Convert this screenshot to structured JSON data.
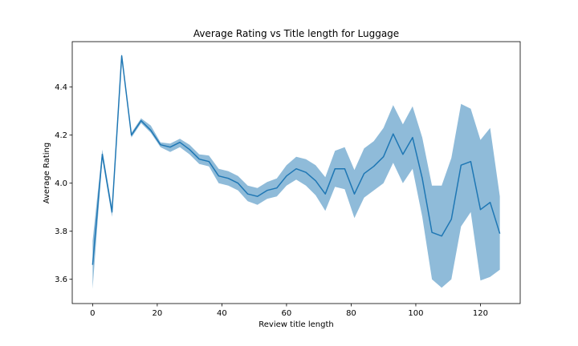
{
  "chart_data": {
    "type": "line",
    "title": "Average Rating vs Title length for Luggage",
    "xlabel": "Review title length",
    "ylabel": "Average Rating",
    "xlim": [
      -6.3,
      132.3
    ],
    "ylim": [
      3.499,
      4.589
    ],
    "xticks": [
      0,
      20,
      40,
      60,
      80,
      100,
      120
    ],
    "yticks": [
      3.6,
      3.8,
      4.0,
      4.2,
      4.4
    ],
    "tick_labels_x": [
      "0",
      "20",
      "40",
      "60",
      "80",
      "100",
      "120"
    ],
    "tick_labels_y": [
      "3.6",
      "3.8",
      "4.0",
      "4.2",
      "4.4"
    ],
    "grid": false,
    "colors": {
      "line": "#1f77b4",
      "band": "#1f77b4",
      "band_opacity": 0.5
    },
    "series": [
      {
        "x": [
          0,
          3,
          6,
          9,
          12,
          15,
          18,
          21,
          24,
          27,
          30,
          33,
          36,
          39,
          42,
          45,
          48,
          51,
          54,
          57,
          60,
          63,
          66,
          69,
          72,
          75,
          78,
          81,
          84,
          87,
          90,
          93,
          96,
          99,
          102,
          105,
          108,
          111,
          114,
          117,
          120,
          123,
          126
        ],
        "y": [
          3.66,
          4.12,
          3.88,
          4.53,
          4.2,
          4.26,
          4.22,
          4.16,
          4.15,
          4.17,
          4.14,
          4.1,
          4.09,
          4.03,
          4.02,
          4.0,
          3.955,
          3.945,
          3.97,
          3.98,
          4.03,
          4.06,
          4.045,
          4.01,
          3.955,
          4.06,
          4.06,
          3.955,
          4.04,
          4.07,
          4.11,
          4.205,
          4.12,
          4.19,
          4.02,
          3.795,
          3.78,
          3.85,
          4.075,
          4.09,
          3.89,
          3.92,
          3.79
        ],
        "ci_lower": [
          3.56,
          4.1,
          3.86,
          4.52,
          4.19,
          4.25,
          4.21,
          4.15,
          4.13,
          4.15,
          4.12,
          4.08,
          4.07,
          4.0,
          3.99,
          3.97,
          3.925,
          3.91,
          3.935,
          3.945,
          3.99,
          4.015,
          3.99,
          3.95,
          3.885,
          3.985,
          3.975,
          3.855,
          3.94,
          3.97,
          4.0,
          4.085,
          4.0,
          4.06,
          3.86,
          3.6,
          3.565,
          3.6,
          3.82,
          3.88,
          3.595,
          3.61,
          3.64
        ],
        "ci_upper": [
          3.76,
          4.14,
          3.9,
          4.54,
          4.21,
          4.27,
          4.24,
          4.17,
          4.165,
          4.185,
          4.16,
          4.12,
          4.115,
          4.06,
          4.05,
          4.03,
          3.99,
          3.98,
          4.005,
          4.02,
          4.075,
          4.11,
          4.1,
          4.075,
          4.025,
          4.135,
          4.15,
          4.055,
          4.145,
          4.175,
          4.23,
          4.325,
          4.245,
          4.32,
          4.19,
          3.99,
          3.99,
          4.105,
          4.33,
          4.31,
          4.18,
          4.23,
          3.945
        ]
      }
    ]
  }
}
